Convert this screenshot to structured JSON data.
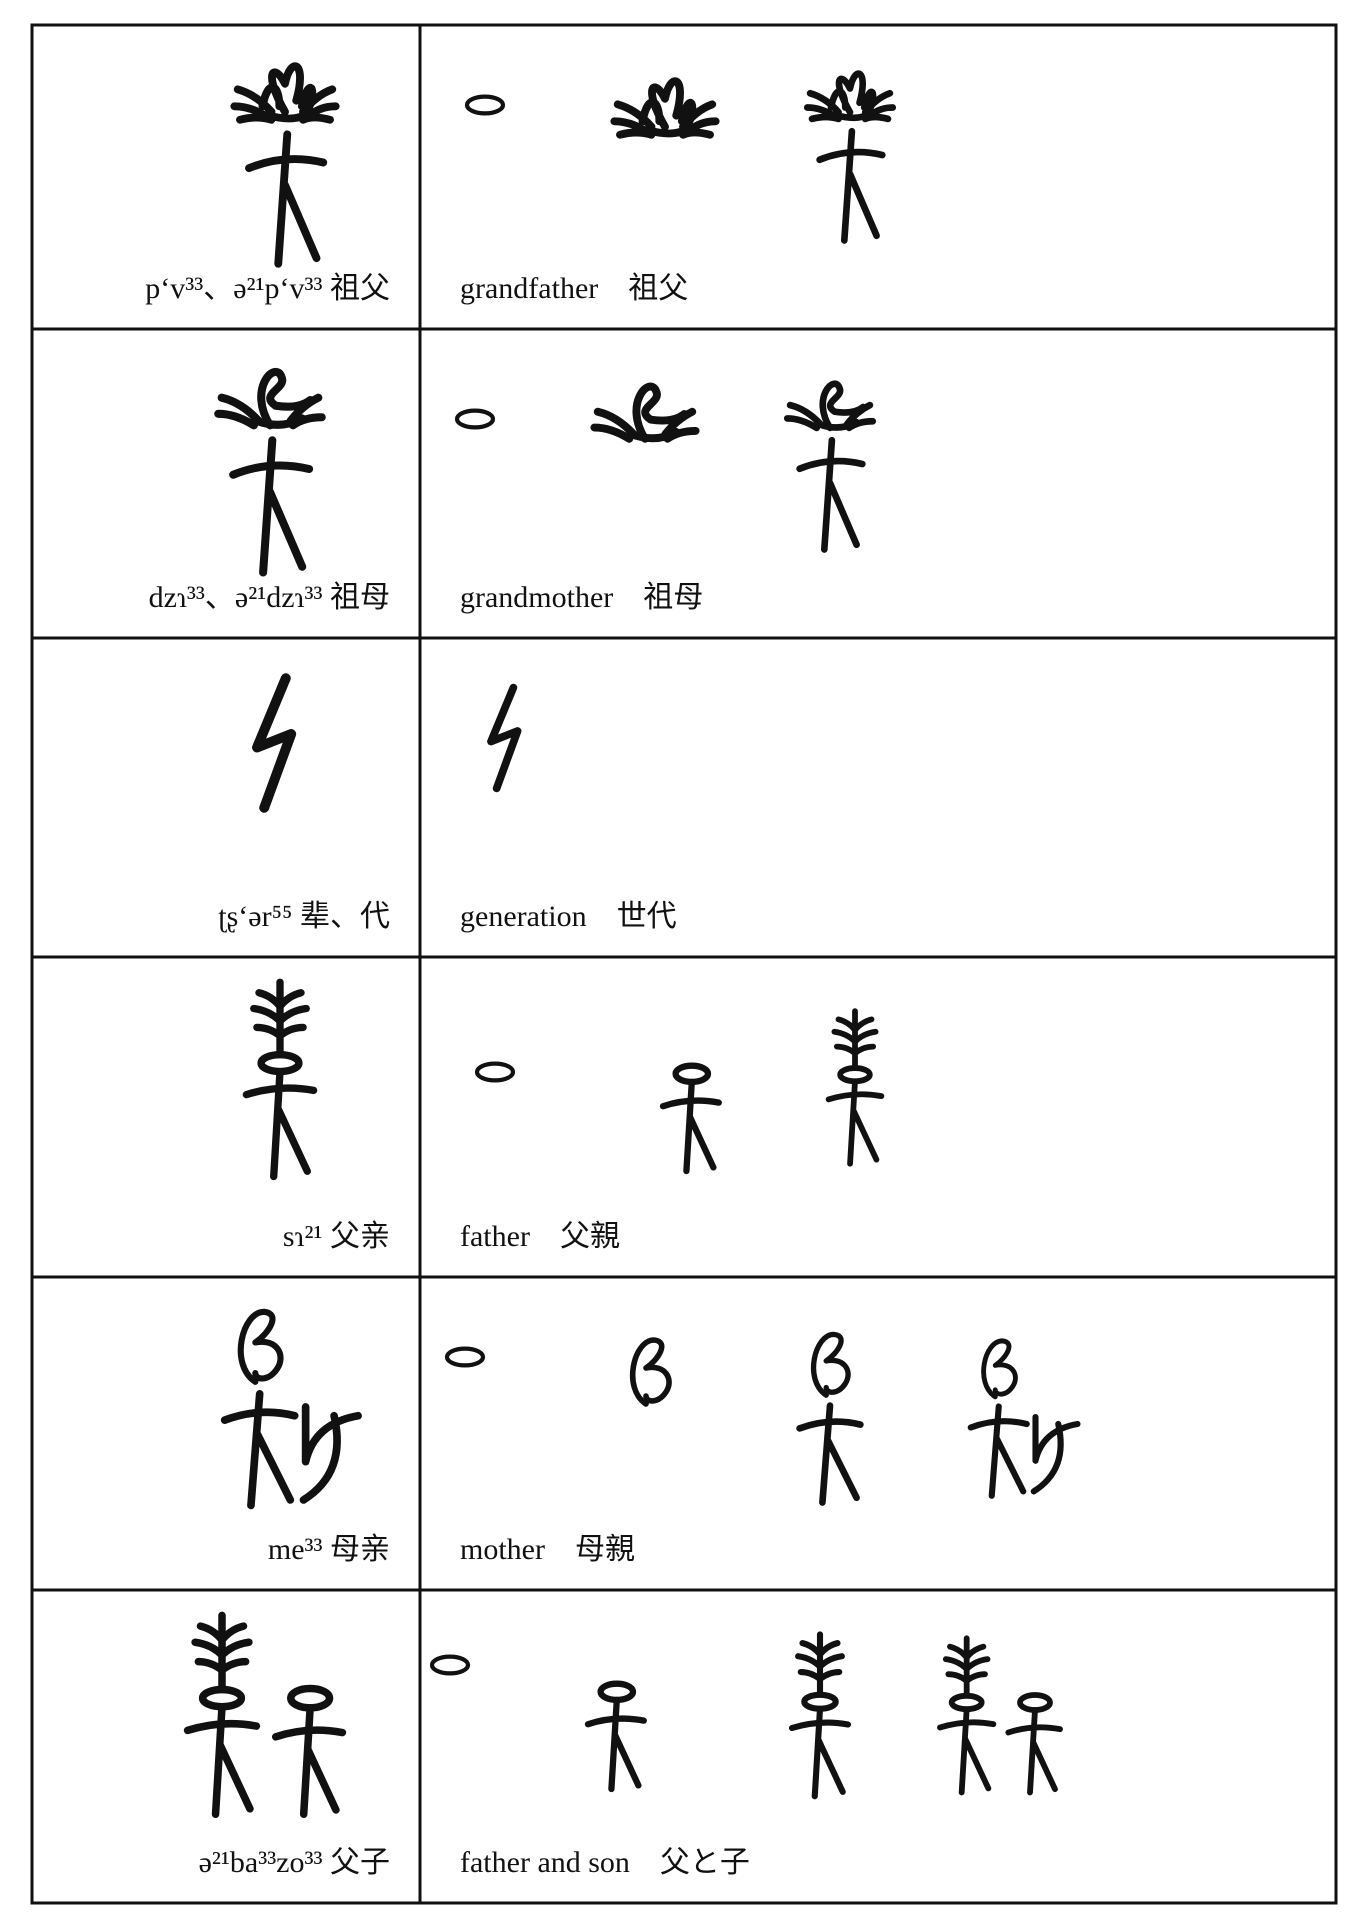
{
  "rows": [
    {
      "label": "p‘v³³、ə²¹p‘v³³ 祖父",
      "gloss": "grandfather　祖父"
    },
    {
      "label": "dzɿ³³、ə²¹dzɿ³³ 祖母",
      "gloss": "grandmother　祖母"
    },
    {
      "label": "ʈʂ‘ər⁵⁵ 辈、代",
      "gloss": "generation　世代"
    },
    {
      "label": "sɿ²¹ 父亲",
      "gloss": "father　父親"
    },
    {
      "label": "me³³ 母亲",
      "gloss": "mother　母親"
    },
    {
      "label": "ə²¹ba³³zo³³ 父子",
      "gloss": "father and son　父と子"
    }
  ]
}
